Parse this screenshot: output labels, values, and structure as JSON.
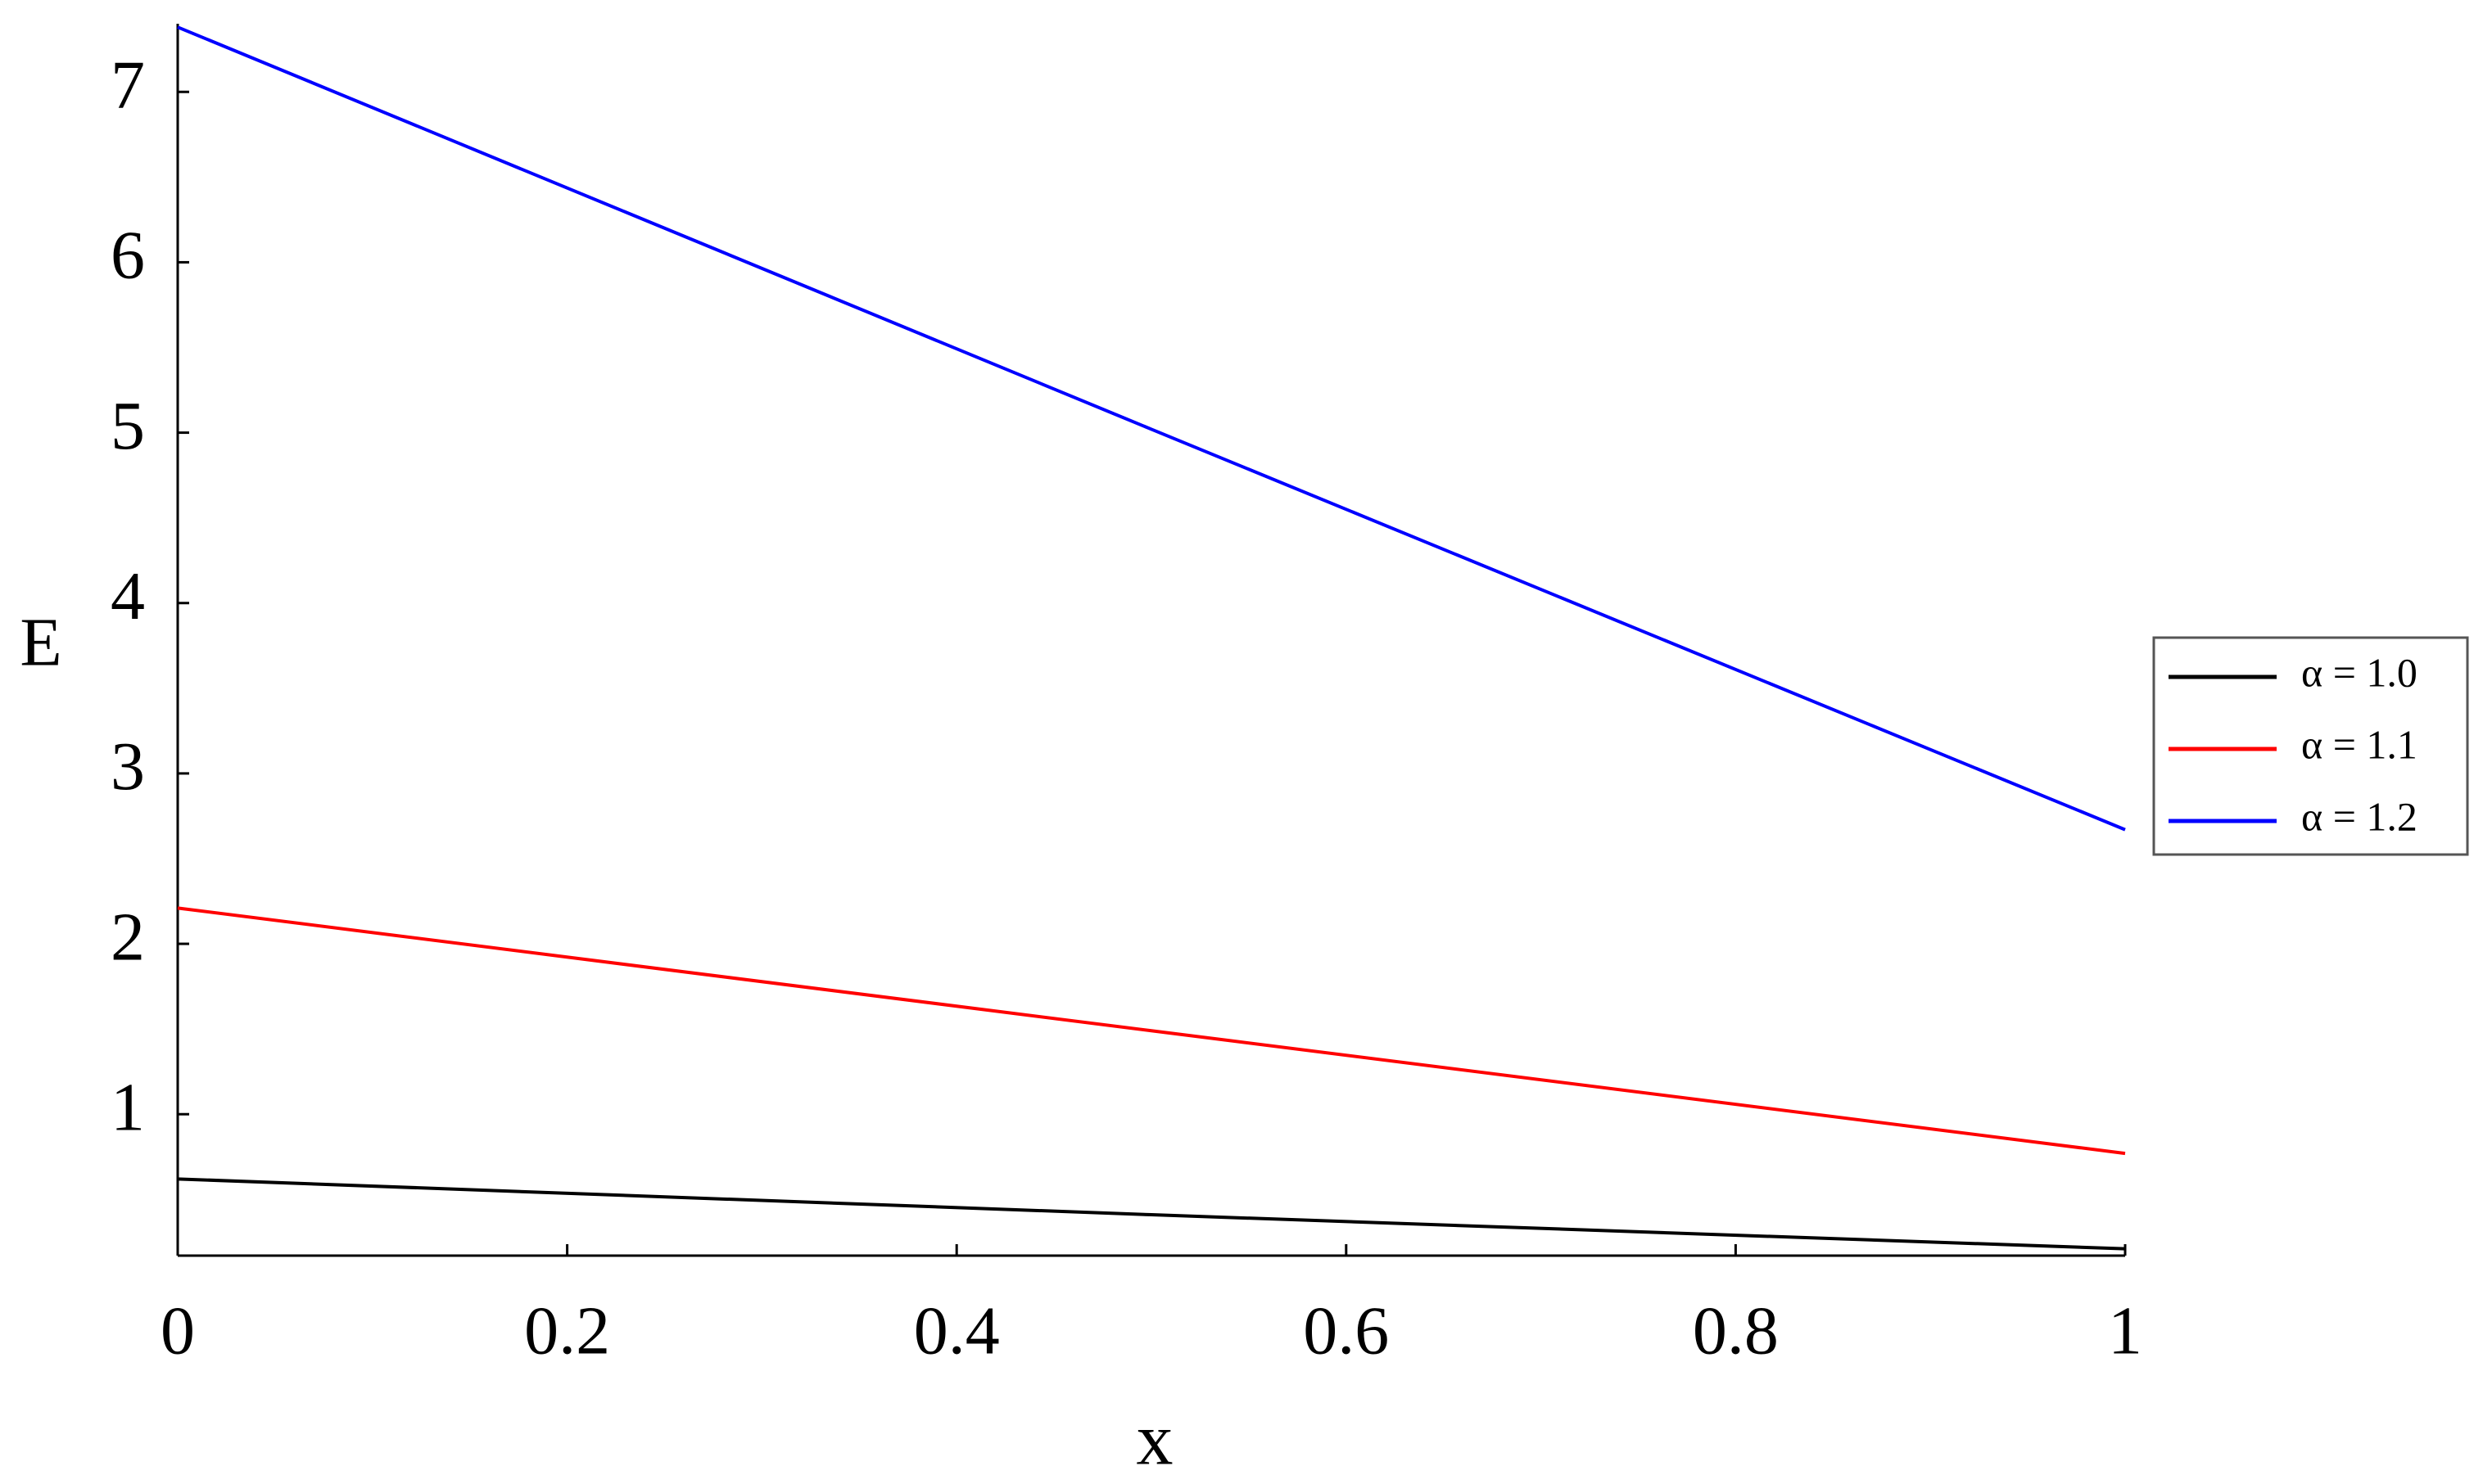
{
  "chart_data": {
    "type": "line",
    "x_label": "x",
    "y_label": "E",
    "x": [
      0,
      0.5,
      1
    ],
    "series": [
      {
        "name": "α = 1.0",
        "color": "#000000",
        "values": [
          0.62,
          0.41,
          0.21
        ]
      },
      {
        "name": "α = 1.1",
        "color": "#ff0000",
        "values": [
          2.21,
          1.49,
          0.77
        ]
      },
      {
        "name": "α = 1.2",
        "color": "#0000ff",
        "values": [
          7.38,
          5.02,
          2.67
        ]
      }
    ],
    "xlim": [
      0,
      1
    ],
    "xticks": [
      0,
      0.2,
      0.4,
      0.6,
      0.8,
      1
    ],
    "ylim": [
      0.17,
      7.4
    ],
    "yticks": [
      1,
      2,
      3,
      4,
      5,
      6,
      7
    ],
    "grid": false,
    "legend": "right"
  }
}
